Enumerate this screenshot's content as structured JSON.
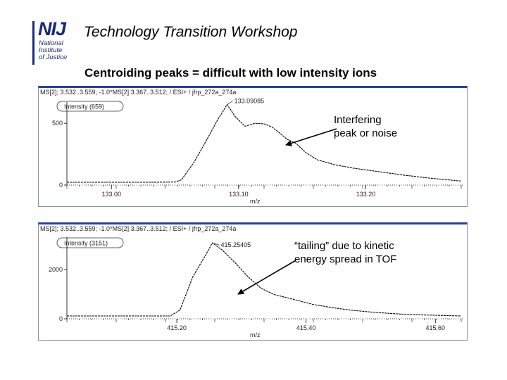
{
  "logo": {
    "main": "NIJ",
    "line1": "National",
    "line2": "Institute",
    "line3": "of Justice"
  },
  "header": "Technology Transition Workshop",
  "title": "Centroiding peaks = difficult with low intensity ions",
  "callouts": {
    "interfering": [
      "Interfering",
      "peak or noise"
    ],
    "tailing": [
      "“tailing” due to kinetic",
      "energy spread in TOF"
    ]
  },
  "colors": {
    "trace": "#000000",
    "panel_border": "#2a3f9a",
    "logo": "#1a2a78"
  },
  "chart_data": [
    {
      "type": "line",
      "header": "MS[2]; 3.532..3.559; -1.0*MS[2] 3.367..3.512; / ESI+ / jfrp_272a_274a",
      "intensity_label": "Intensity (659)",
      "peak_label": "133.09085",
      "xlabel": "m/z",
      "xticks": [
        "133.00",
        "133.10",
        "133.20"
      ],
      "yticks": [
        "500",
        "0"
      ],
      "xlim": [
        132.965,
        133.275
      ],
      "ylim": [
        0,
        680
      ],
      "x": [
        132.965,
        133.0,
        133.03,
        133.05,
        133.055,
        133.065,
        133.075,
        133.083,
        133.091,
        133.097,
        133.105,
        133.113,
        133.12,
        133.126,
        133.132,
        133.138,
        133.145,
        133.153,
        133.162,
        133.175,
        133.19,
        133.21,
        133.23,
        133.25,
        133.275
      ],
      "y": [
        0,
        0,
        0,
        2,
        20,
        170,
        360,
        520,
        659,
        560,
        475,
        500,
        495,
        470,
        420,
        365,
        330,
        250,
        190,
        150,
        120,
        90,
        60,
        35,
        10
      ]
    },
    {
      "type": "line",
      "header": "MS[2]; 3.532..3.559; -1.0*MS[2] 3.367..3.512; / ESI+ / jfrp_272a_274a",
      "intensity_label": "Intensity (3151)",
      "peak_label": "415.25405",
      "xlabel": "m/z",
      "xticks": [
        "415.20",
        "415.40",
        "415.60"
      ],
      "yticks": [
        "2000",
        "0"
      ],
      "xlim": [
        415.03,
        415.64
      ],
      "ylim": [
        0,
        3400
      ],
      "x": [
        415.03,
        415.19,
        415.205,
        415.225,
        415.245,
        415.255,
        415.27,
        415.29,
        415.31,
        415.33,
        415.35,
        415.38,
        415.41,
        415.44,
        415.47,
        415.5,
        415.53,
        415.56,
        415.6,
        415.64
      ],
      "y": [
        0,
        0,
        260,
        1700,
        2650,
        3151,
        2850,
        2300,
        1700,
        1200,
        930,
        720,
        500,
        360,
        250,
        170,
        110,
        60,
        30,
        0
      ]
    }
  ]
}
